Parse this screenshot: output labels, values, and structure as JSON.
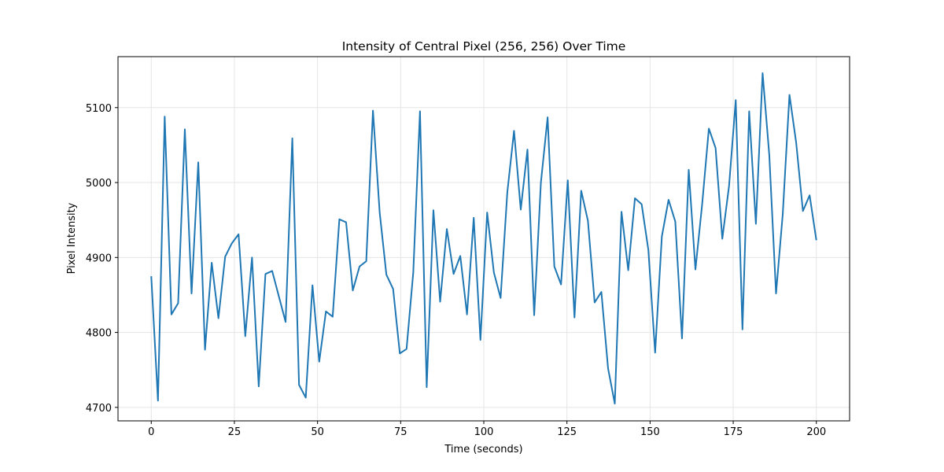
{
  "chart_data": {
    "type": "line",
    "title": "Intensity of Central Pixel (256, 256) Over Time",
    "x_label": "Time (seconds)",
    "y_label": "Pixel Intensity",
    "x": [
      0,
      2.02,
      4.04,
      6.06,
      8.08,
      10.1,
      12.12,
      14.14,
      16.16,
      18.18,
      20.2,
      22.22,
      24.24,
      26.26,
      28.28,
      30.3,
      32.32,
      34.34,
      36.36,
      38.38,
      40.4,
      42.42,
      44.44,
      46.46,
      48.48,
      50.51,
      52.53,
      54.55,
      56.57,
      58.59,
      60.61,
      62.63,
      64.65,
      66.67,
      68.69,
      70.71,
      72.73,
      74.75,
      76.77,
      78.79,
      80.81,
      82.83,
      84.85,
      86.87,
      88.89,
      90.91,
      92.93,
      94.95,
      96.97,
      98.99,
      101.01,
      103.03,
      105.05,
      107.07,
      109.09,
      111.11,
      113.13,
      115.15,
      117.17,
      119.19,
      121.21,
      123.23,
      125.25,
      127.27,
      129.29,
      131.31,
      133.33,
      135.35,
      137.37,
      139.39,
      141.41,
      143.43,
      145.45,
      147.47,
      149.49,
      151.52,
      153.54,
      155.56,
      157.58,
      159.6,
      161.62,
      163.64,
      165.66,
      167.68,
      169.7,
      171.72,
      173.74,
      175.76,
      177.78,
      179.8,
      181.82,
      183.84,
      185.86,
      187.88,
      189.9,
      191.92,
      193.94,
      195.96,
      197.98,
      200
    ],
    "series": [
      {
        "color": "#1f77b4",
        "values": [
          4875,
          4709,
          5088,
          4824,
          4839,
          5071,
          4852,
          5027,
          4777,
          4893,
          4819,
          4901,
          4919,
          4931,
          4795,
          4900,
          4728,
          4878,
          4882,
          4848,
          4814,
          5059,
          4730,
          4713,
          4863,
          4761,
          4828,
          4821,
          4951,
          4947,
          4856,
          4888,
          4895,
          5096,
          4960,
          4877,
          4858,
          4772,
          4778,
          4880,
          5095,
          4727,
          4963,
          4841,
          4938,
          4878,
          4902,
          4824,
          4953,
          4790,
          4960,
          4880,
          4846,
          4987,
          5069,
          4964,
          5044,
          4823,
          5000,
          5087,
          4888,
          4864,
          5003,
          4820,
          4989,
          4949,
          4840,
          4854,
          4752,
          4705,
          4961,
          4883,
          4979,
          4971,
          4910,
          4773,
          4928,
          4977,
          4948,
          4792,
          5017,
          4884,
          4971,
          5072,
          5046,
          4925,
          4995,
          5110,
          4804,
          5095,
          4945,
          5146,
          5036,
          4852,
          4958,
          5117,
          5053,
          4962,
          4983,
          4923
        ]
      }
    ],
    "xlim": [
      -10,
      210
    ],
    "xticks": [
      0,
      25,
      50,
      75,
      100,
      125,
      150,
      175,
      200
    ],
    "ylim": [
      4682,
      5168
    ],
    "yticks": [
      4700,
      4800,
      4900,
      5000,
      5100
    ],
    "grid": true
  }
}
